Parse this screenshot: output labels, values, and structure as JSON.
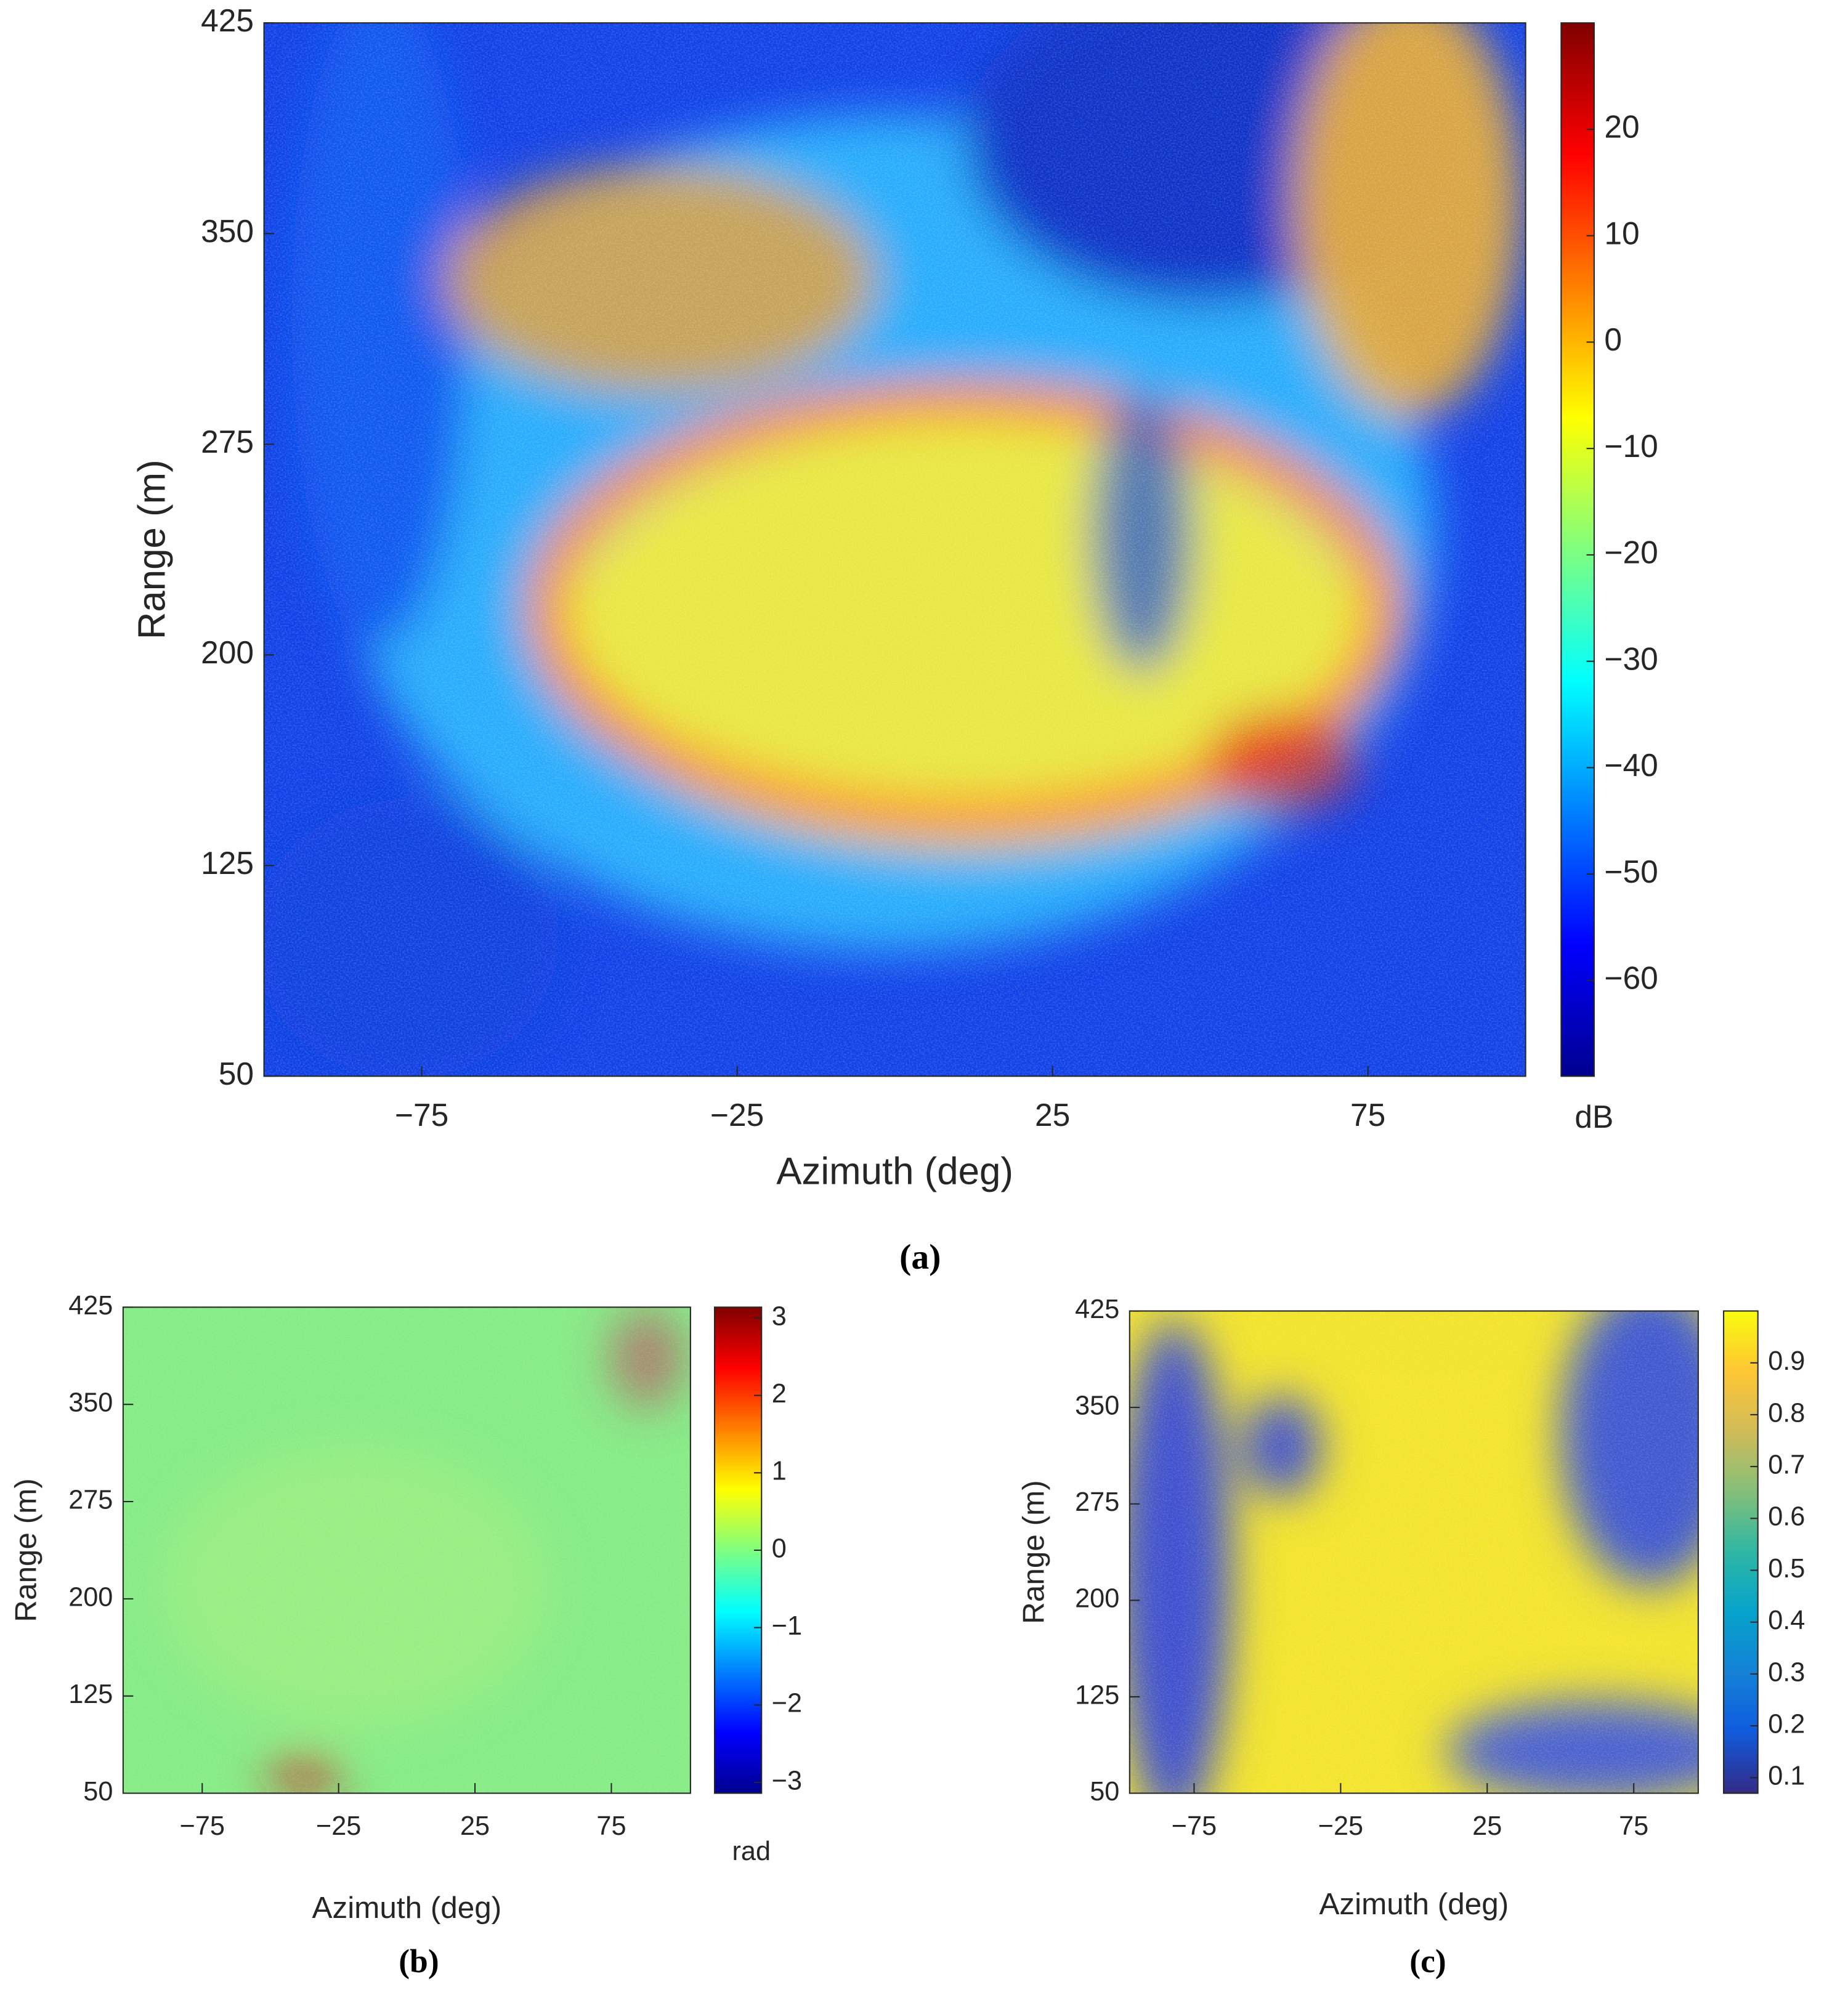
{
  "chart_data": [
    {
      "type": "heatmap",
      "caption": "(a)",
      "xlabel": "Azimuth (deg)",
      "ylabel": "Range (m)",
      "xlim": [
        -100,
        100
      ],
      "xticks": [
        {
          "value": -75,
          "label": "−75"
        },
        {
          "value": -25,
          "label": "−25"
        },
        25,
        75
      ],
      "ylim": [
        50,
        425
      ],
      "yticks": [
        50,
        125,
        200,
        275,
        350,
        425
      ],
      "colorbar": {
        "colormap": "jet",
        "label": "dB",
        "lim": [
          -69,
          30
        ],
        "ticks": [
          {
            "value": -60,
            "label": "−60"
          },
          {
            "value": -50,
            "label": "−50"
          },
          {
            "value": -40,
            "label": "−40"
          },
          {
            "value": -30,
            "label": "−30"
          },
          {
            "value": -20,
            "label": "−20"
          },
          {
            "value": -10,
            "label": "−10"
          },
          0,
          10,
          20
        ]
      }
    },
    {
      "type": "heatmap",
      "caption": "(b)",
      "xlabel": "Azimuth (deg)",
      "ylabel": "Range (m)",
      "xlim": [
        -104,
        104
      ],
      "xticks": [
        {
          "value": -75,
          "label": "−75"
        },
        {
          "value": -25,
          "label": "−25"
        },
        25,
        75
      ],
      "ylim": [
        50,
        425
      ],
      "yticks": [
        50,
        125,
        200,
        275,
        350,
        425
      ],
      "colorbar": {
        "colormap": "jet",
        "label": "rad",
        "lim": [
          -3.14,
          3.14
        ],
        "ticks": [
          {
            "value": -3,
            "label": "−3"
          },
          {
            "value": -2,
            "label": "−2"
          },
          {
            "value": -1,
            "label": "−1"
          },
          0,
          1,
          2,
          3
        ]
      }
    },
    {
      "type": "heatmap",
      "caption": "(c)",
      "xlabel": "Azimuth (deg)",
      "ylabel": "Range (m)",
      "xlim": [
        -97,
        97
      ],
      "xticks": [
        {
          "value": -75,
          "label": "−75"
        },
        {
          "value": -25,
          "label": "−25"
        },
        25,
        75
      ],
      "ylim": [
        50,
        425
      ],
      "yticks": [
        50,
        125,
        200,
        275,
        350,
        425
      ],
      "colorbar": {
        "colormap": "parula",
        "lim": [
          0.07,
          1
        ],
        "ticks": [
          0.1,
          0.2,
          0.3,
          0.4,
          0.5,
          0.6,
          0.7,
          0.8,
          0.9
        ]
      }
    }
  ]
}
